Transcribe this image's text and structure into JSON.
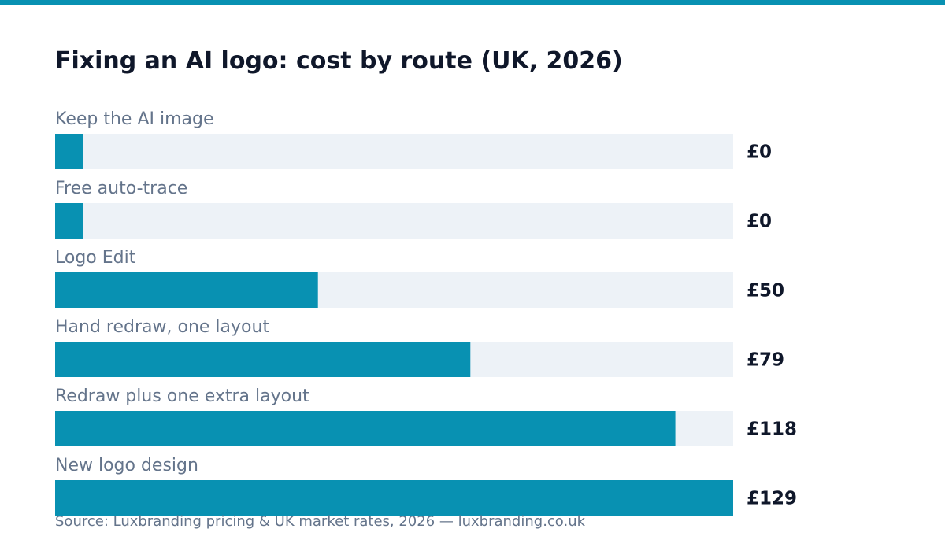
{
  "colors": {
    "accent": "#0891b2",
    "track": "#edf2f7",
    "label": "#64748b",
    "value": "#0f172a"
  },
  "chart_data": {
    "type": "bar",
    "orientation": "horizontal",
    "title": "Fixing an AI logo: cost by route (UK, 2026)",
    "xlabel": "",
    "ylabel": "",
    "currency": "£",
    "xlim": [
      0,
      129
    ],
    "categories": [
      "Keep the AI image",
      "Free auto-trace",
      "Logo Edit",
      "Hand redraw, one layout",
      "Redraw plus one extra layout",
      "New logo design"
    ],
    "values": [
      0,
      0,
      50,
      79,
      118,
      129
    ],
    "value_labels": [
      "£0",
      "£0",
      "£50",
      "£79",
      "£118",
      "£129"
    ],
    "grid": false,
    "legend": "none"
  },
  "footer": {
    "source": "Source: Luxbranding pricing & UK market rates, 2026 — luxbranding.co.uk"
  }
}
